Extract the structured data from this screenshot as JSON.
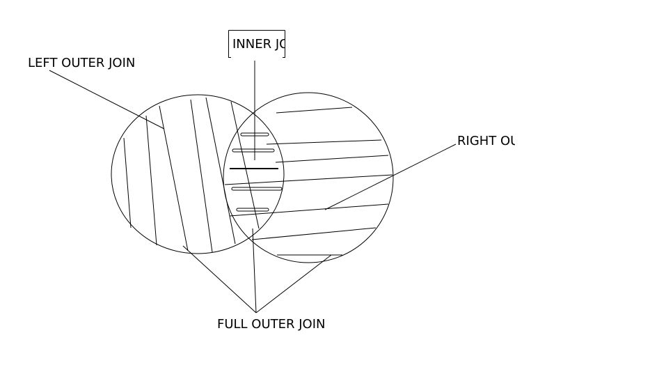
{
  "labels": {
    "left_outer_join": "LEFT OUTER JOIN",
    "inner_join": "INNER JOIN",
    "right_outer_join": "RIGHT OUTER JOIN",
    "full_outer_join": "FULL OUTER JOIN"
  },
  "colors": {
    "stroke": "#000000",
    "background": "#ffffff"
  }
}
